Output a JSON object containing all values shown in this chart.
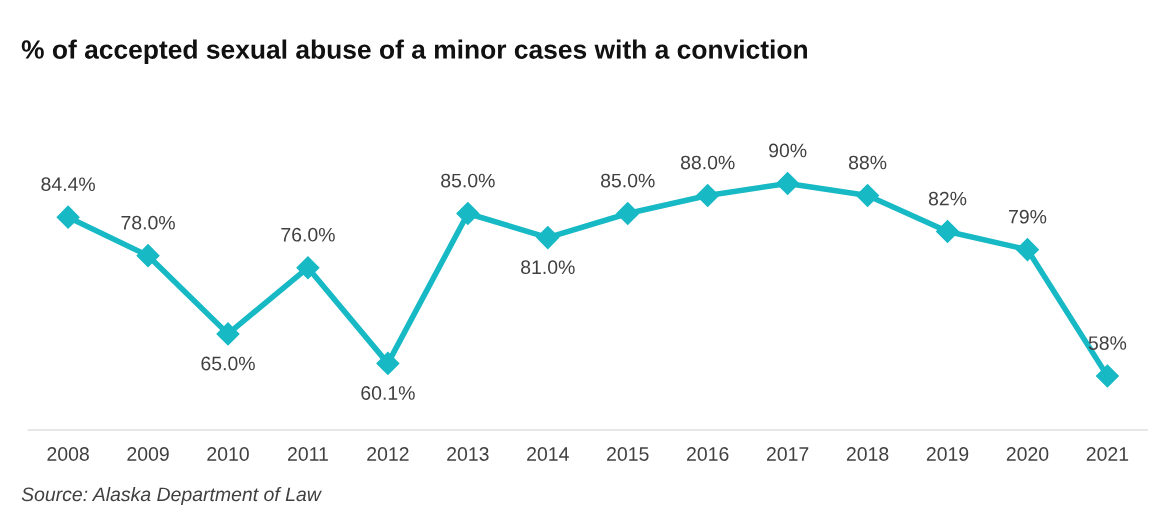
{
  "chart_data": {
    "type": "line",
    "title": "% of accepted sexual abuse of a minor cases with a conviction",
    "categories": [
      "2008",
      "2009",
      "2010",
      "2011",
      "2012",
      "2013",
      "2014",
      "2015",
      "2016",
      "2017",
      "2018",
      "2019",
      "2020",
      "2021"
    ],
    "series": [
      {
        "color": "#17b9c5",
        "values": [
          84.4,
          78.0,
          65.0,
          76.0,
          60.1,
          85.0,
          81.0,
          85.0,
          88.0,
          90,
          88,
          82,
          79,
          58
        ],
        "value_labels": [
          "84.4%",
          "78.0%",
          "65.0%",
          "76.0%",
          "60.1%",
          "85.0%",
          "81.0%",
          "85.0%",
          "88.0%",
          "90%",
          "88%",
          "82%",
          "79%",
          "58%"
        ]
      }
    ],
    "marker": "diamond",
    "line_style": "solid",
    "grid": false,
    "legend": false,
    "tick_labels": "x",
    "annotations": [
      "Source: Alaska Department of Law"
    ]
  }
}
